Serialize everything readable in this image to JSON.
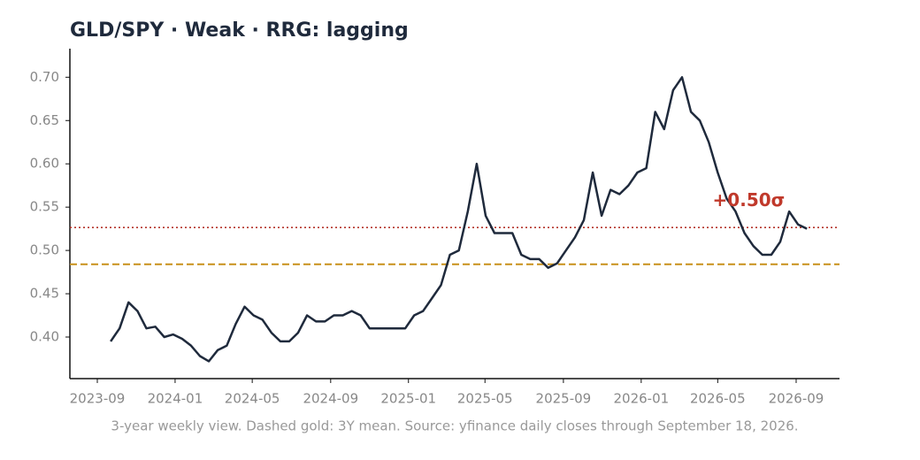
{
  "chart_data": {
    "type": "line",
    "title": "GLD/SPY  ·  Weak  ·  RRG: lagging",
    "caption": "3-year weekly view. Dashed gold: 3Y mean. Source: yfinance daily closes through September 18, 2026.",
    "x": [
      "2023-09-22",
      "2023-10-06",
      "2023-10-20",
      "2023-11-03",
      "2023-11-17",
      "2023-12-01",
      "2023-12-15",
      "2023-12-29",
      "2024-01-12",
      "2024-01-26",
      "2024-02-09",
      "2024-02-23",
      "2024-03-08",
      "2024-03-22",
      "2024-04-05",
      "2024-04-19",
      "2024-05-03",
      "2024-05-17",
      "2024-05-31",
      "2024-06-14",
      "2024-06-28",
      "2024-07-12",
      "2024-07-26",
      "2024-08-09",
      "2024-08-23",
      "2024-09-06",
      "2024-09-20",
      "2024-10-04",
      "2024-10-18",
      "2024-11-01",
      "2024-11-15",
      "2024-11-29",
      "2024-12-13",
      "2024-12-27",
      "2025-01-10",
      "2025-01-24",
      "2025-02-07",
      "2025-02-21",
      "2025-03-07",
      "2025-03-21",
      "2025-04-04",
      "2025-04-18",
      "2025-05-02",
      "2025-05-16",
      "2025-05-30",
      "2025-06-13",
      "2025-06-27",
      "2025-07-11",
      "2025-07-25",
      "2025-08-08",
      "2025-08-22",
      "2025-09-05",
      "2025-09-19",
      "2025-10-03",
      "2025-10-17",
      "2025-10-31",
      "2025-11-14",
      "2025-11-28",
      "2025-12-12",
      "2025-12-26",
      "2026-01-09",
      "2026-01-23",
      "2026-02-06",
      "2026-02-20",
      "2026-03-06",
      "2026-03-20",
      "2026-04-03",
      "2026-04-17",
      "2026-05-01",
      "2026-05-15",
      "2026-05-29",
      "2026-06-12",
      "2026-06-26",
      "2026-07-10",
      "2026-07-24",
      "2026-08-07",
      "2026-08-21",
      "2026-09-04",
      "2026-09-18"
    ],
    "series": [
      {
        "name": "GLD/SPY",
        "color": "#1f2a3c",
        "values": [
          0.395,
          0.41,
          0.44,
          0.43,
          0.41,
          0.412,
          0.4,
          0.403,
          0.398,
          0.39,
          0.378,
          0.372,
          0.385,
          0.39,
          0.415,
          0.435,
          0.425,
          0.42,
          0.405,
          0.395,
          0.395,
          0.405,
          0.425,
          0.418,
          0.418,
          0.425,
          0.425,
          0.43,
          0.425,
          0.41,
          0.41,
          0.41,
          0.41,
          0.41,
          0.425,
          0.43,
          0.445,
          0.46,
          0.495,
          0.5,
          0.545,
          0.6,
          0.54,
          0.52,
          0.52,
          0.52,
          0.495,
          0.49,
          0.49,
          0.48,
          0.485,
          0.5,
          0.515,
          0.535,
          0.59,
          0.54,
          0.57,
          0.565,
          0.575,
          0.59,
          0.595,
          0.66,
          0.64,
          0.685,
          0.7,
          0.66,
          0.65,
          0.625,
          0.59,
          0.56,
          0.545,
          0.52,
          0.505,
          0.495,
          0.495,
          0.51,
          0.545,
          0.53,
          0.525
        ]
      }
    ],
    "reference_lines": [
      {
        "value": 0.484,
        "color": "#c8901a",
        "style": "dashed"
      },
      {
        "value": 0.5265,
        "color": "#b5352a",
        "style": "dotted"
      }
    ],
    "annotations": [
      {
        "text": "+0.50σ",
        "x": "2026-04-23",
        "y": 0.557,
        "color": "#c0392b"
      }
    ],
    "xlim": [
      "2023-07-20",
      "2026-11-08"
    ],
    "xticks": [
      "2023-09",
      "2024-01",
      "2024-05",
      "2024-09",
      "2025-01",
      "2025-05",
      "2025-09",
      "2026-01",
      "2026-05",
      "2026-09"
    ],
    "ylim": [
      0.352,
      0.733
    ],
    "yticks": [
      {
        "value": 0.4,
        "label": "0.40"
      },
      {
        "value": 0.45,
        "label": "0.45"
      },
      {
        "value": 0.5,
        "label": "0.50"
      },
      {
        "value": 0.55,
        "label": "0.55"
      },
      {
        "value": 0.6,
        "label": "0.60"
      },
      {
        "value": 0.65,
        "label": "0.65"
      },
      {
        "value": 0.7,
        "label": "0.70"
      }
    ],
    "grid": false
  }
}
